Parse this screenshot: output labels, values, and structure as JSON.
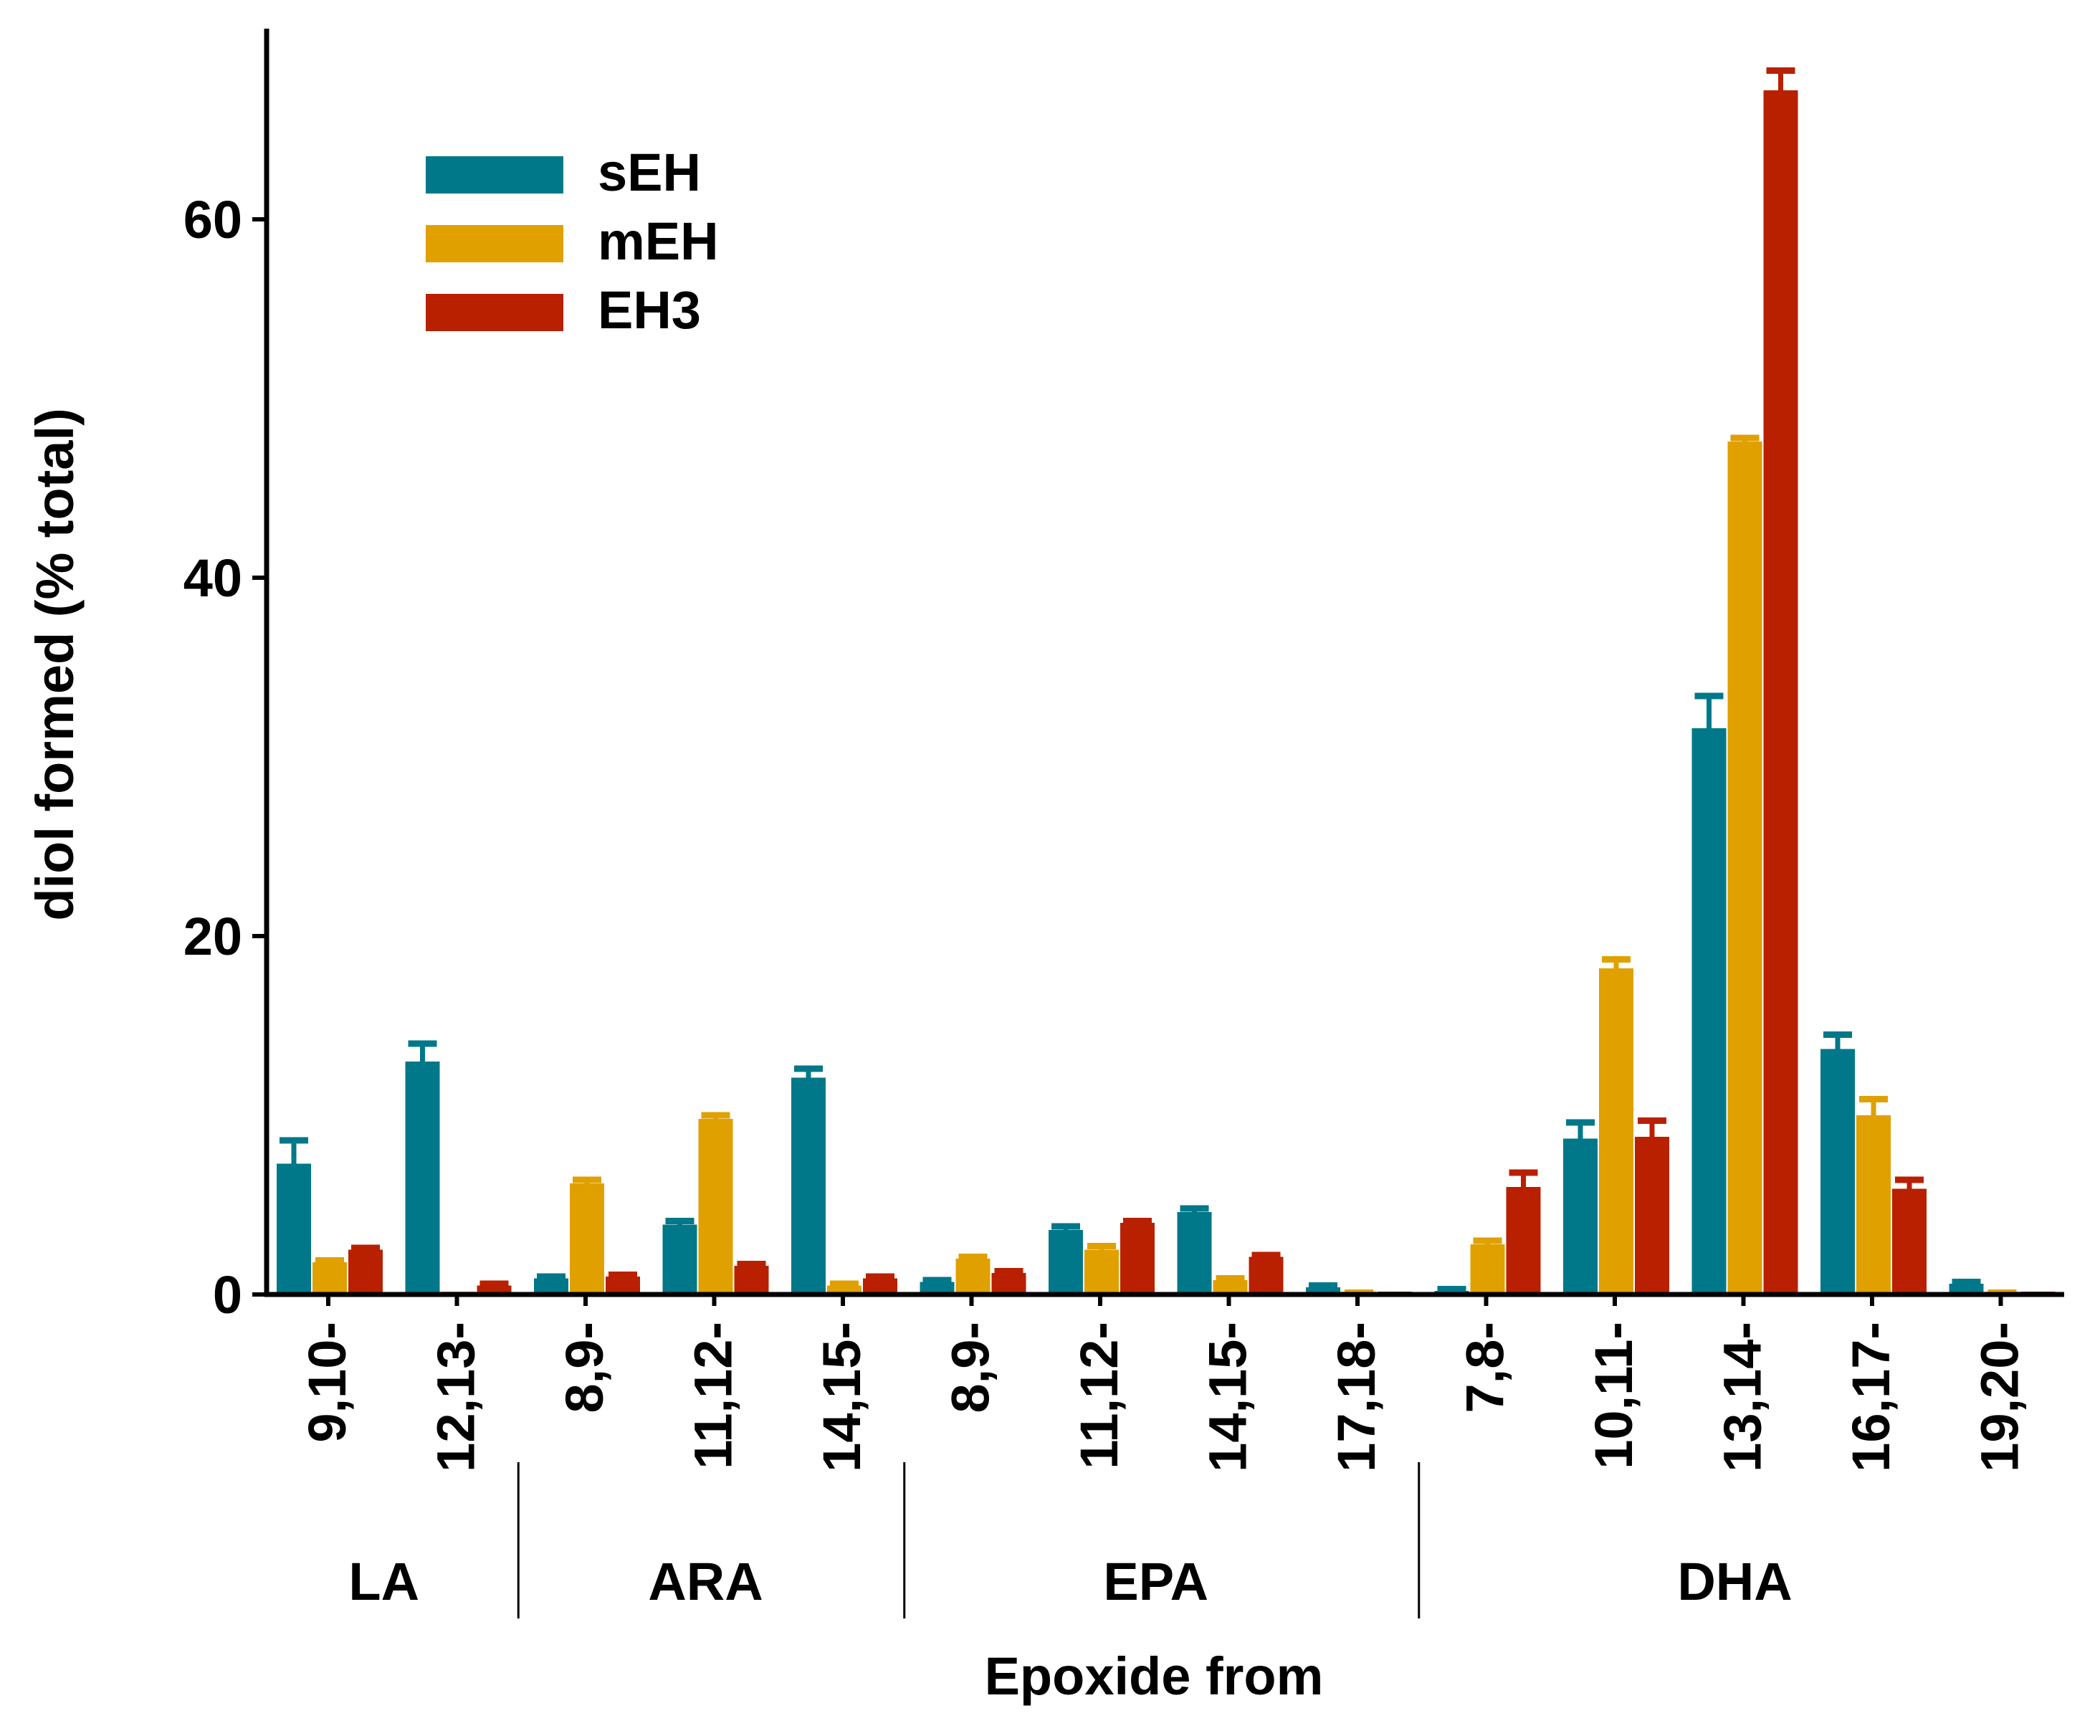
{
  "chart_data": {
    "type": "bar",
    "ylabel": "diol formed (% total)",
    "xlabel": "Epoxide from",
    "ylim": [
      0,
      68
    ],
    "yticks": [
      0,
      20,
      40,
      60
    ],
    "grid": false,
    "legend_position": "top-left",
    "categories": [
      "9,10-",
      "12,13-",
      "8,9-",
      "11,12-",
      "14,15-",
      "8,9-",
      "11,12-",
      "14,15-",
      "17,18-",
      "7,8-",
      "10,11-",
      "13,14-",
      "16,17-",
      "19,20-"
    ],
    "groups": [
      {
        "name": "LA",
        "count": 2
      },
      {
        "name": "ARA",
        "count": 3
      },
      {
        "name": "EPA",
        "count": 4
      },
      {
        "name": "DHA",
        "count": 5
      }
    ],
    "series": [
      {
        "name": "sEH",
        "color": "#00788a",
        "values": [
          7.3,
          13.0,
          0.9,
          3.9,
          12.1,
          0.7,
          3.6,
          4.6,
          0.4,
          0.2,
          8.7,
          31.6,
          13.7,
          0.6
        ],
        "errors": [
          1.3,
          1.0,
          0.1,
          0.2,
          0.5,
          0.1,
          0.2,
          0.2,
          0.1,
          0.1,
          0.9,
          1.8,
          0.8,
          0.1
        ]
      },
      {
        "name": "mEH",
        "color": "#e0a000",
        "values": [
          1.8,
          0.0,
          6.2,
          9.8,
          0.5,
          2.0,
          2.5,
          0.8,
          0.1,
          2.8,
          18.2,
          47.6,
          10.0,
          0.1
        ],
        "errors": [
          0.1,
          0.0,
          0.2,
          0.2,
          0.1,
          0.1,
          0.2,
          0.1,
          0.0,
          0.2,
          0.5,
          0.2,
          0.9,
          0.0
        ]
      },
      {
        "name": "EH3",
        "color": "#b82000",
        "values": [
          2.5,
          0.5,
          1.0,
          1.6,
          0.9,
          1.2,
          4.0,
          2.1,
          0.0,
          6.0,
          8.8,
          67.2,
          5.9,
          0.0
        ],
        "errors": [
          0.1,
          0.1,
          0.1,
          0.1,
          0.1,
          0.1,
          0.1,
          0.1,
          0.0,
          0.8,
          0.9,
          1.1,
          0.5,
          0.0
        ]
      }
    ]
  }
}
